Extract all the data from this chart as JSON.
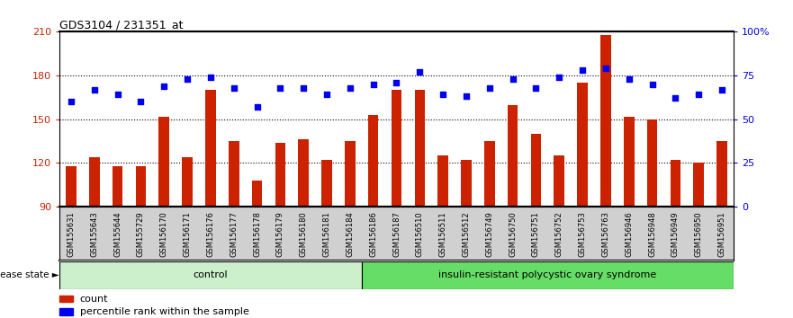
{
  "title": "GDS3104 / 231351_at",
  "samples": [
    "GSM155631",
    "GSM155643",
    "GSM155644",
    "GSM155729",
    "GSM156170",
    "GSM156171",
    "GSM156176",
    "GSM156177",
    "GSM156178",
    "GSM156179",
    "GSM156180",
    "GSM156181",
    "GSM156184",
    "GSM156186",
    "GSM156187",
    "GSM156510",
    "GSM156511",
    "GSM156512",
    "GSM156749",
    "GSM156750",
    "GSM156751",
    "GSM156752",
    "GSM156753",
    "GSM156763",
    "GSM156946",
    "GSM156948",
    "GSM156949",
    "GSM156950",
    "GSM156951"
  ],
  "bar_values": [
    118,
    124,
    118,
    118,
    152,
    124,
    170,
    135,
    108,
    134,
    136,
    122,
    135,
    153,
    170,
    170,
    125,
    122,
    135,
    160,
    140,
    125,
    175,
    208,
    152,
    150,
    122,
    120,
    135
  ],
  "dot_values_pct": [
    60,
    67,
    64,
    60,
    69,
    73,
    74,
    68,
    57,
    68,
    68,
    64,
    68,
    70,
    71,
    77,
    64,
    63,
    68,
    73,
    68,
    74,
    78,
    79,
    73,
    70,
    62,
    64,
    67
  ],
  "control_count": 13,
  "disease_count": 16,
  "ylim_left": [
    90,
    210
  ],
  "ylim_right": [
    0,
    100
  ],
  "yticks_left": [
    90,
    120,
    150,
    180,
    210
  ],
  "yticks_right": [
    0,
    25,
    50,
    75,
    100
  ],
  "bar_color": "#cc2200",
  "dot_color": "#0000ee",
  "control_label": "control",
  "disease_label": "insulin-resistant polycystic ovary syndrome",
  "legend_bar": "count",
  "legend_dot": "percentile rank within the sample",
  "control_bg": "#ccf0cc",
  "disease_bg": "#66dd66",
  "xlabel_bg": "#d0d0d0",
  "disease_state_label": "disease state"
}
